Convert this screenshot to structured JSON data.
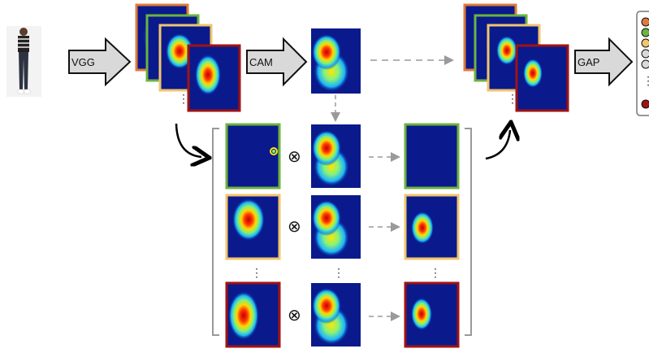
{
  "labels": {
    "vgg": "VGG",
    "cam": "CAM",
    "gap": "GAP",
    "multiply": "⊗",
    "ellipsis": "⋮"
  },
  "colors": {
    "heatmap_background": "#0a1a8c",
    "frame_orange": "#e07b39",
    "frame_green": "#6cb33f",
    "frame_yellow": "#f2c56b",
    "frame_red": "#a11212",
    "arrow_fill": "#d9d9d9",
    "dashed_arrow": "#9a9a9a",
    "bracket": "#999999",
    "legend_circles": [
      "#e07b39",
      "#6cb33f",
      "#f2c56b",
      "#d9d9d9",
      "#d9d9d9",
      "#a11212"
    ]
  },
  "icons": {
    "input_photo": "person-in-jeans-photo-icon",
    "block_arrow": "right-block-arrow-icon",
    "curved_arrow": "curved-arrow-icon",
    "multiply_symbol": "circled-times-icon"
  }
}
